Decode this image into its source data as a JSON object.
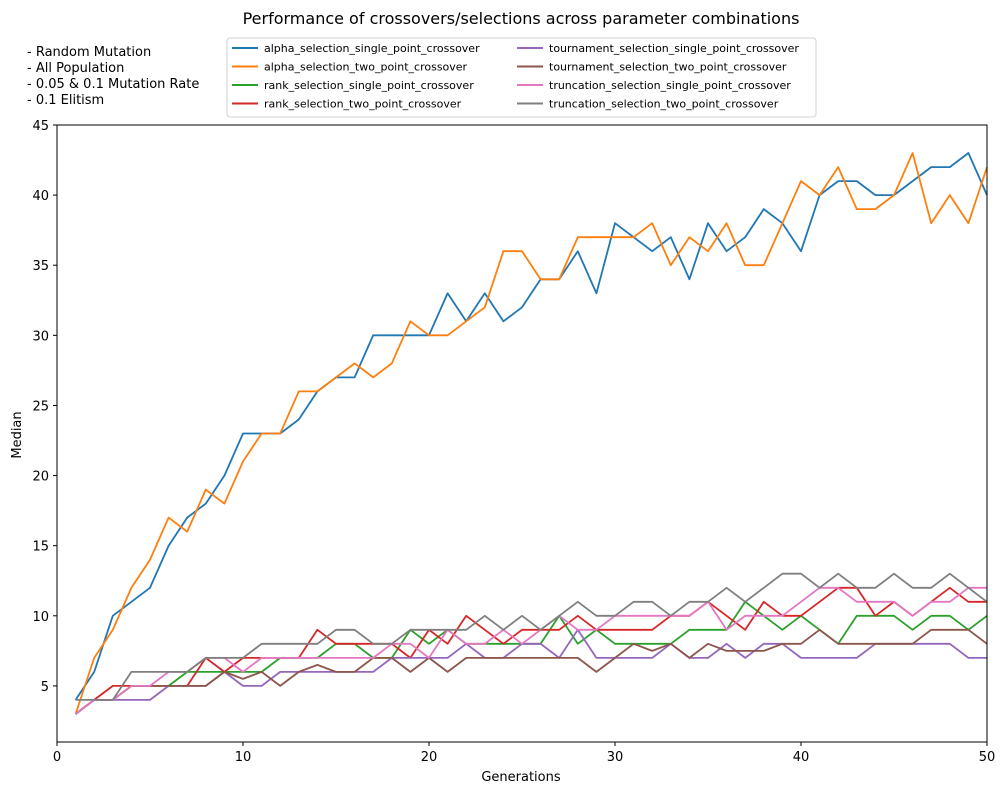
{
  "chart_data": {
    "type": "line",
    "title": "Performance of crossovers/selections across parameter combinations",
    "notes": [
      "- Random Mutation",
      "- All Population",
      "- 0.05 & 0.1 Mutation Rate",
      "- 0.1 Elitism"
    ],
    "xlabel": "Generations",
    "ylabel": "Median",
    "xlim": [
      0,
      50
    ],
    "ylim": [
      1,
      45
    ],
    "xticks": [
      0,
      10,
      20,
      30,
      40,
      50
    ],
    "yticks": [
      5,
      10,
      15,
      20,
      25,
      30,
      35,
      40,
      45
    ],
    "grid": false,
    "legend_position": "top-center",
    "x": [
      1,
      2,
      3,
      4,
      5,
      6,
      7,
      8,
      9,
      10,
      11,
      12,
      13,
      14,
      15,
      16,
      17,
      18,
      19,
      20,
      21,
      22,
      23,
      24,
      25,
      26,
      27,
      28,
      29,
      30,
      31,
      32,
      33,
      34,
      35,
      36,
      37,
      38,
      39,
      40,
      41,
      42,
      43,
      44,
      45,
      46,
      47,
      48,
      49,
      50
    ],
    "series": [
      {
        "name": "alpha_selection_single_point_crossover",
        "color": "#1f77b4",
        "values": [
          4,
          6,
          10,
          11,
          12,
          15,
          17,
          18,
          20,
          23,
          23,
          23,
          24,
          26,
          27,
          27,
          30,
          30,
          30,
          30,
          33,
          31,
          33,
          31,
          32,
          34,
          34,
          36,
          33,
          38,
          37,
          36,
          37,
          34,
          38,
          36,
          37,
          39,
          38,
          36,
          40,
          41,
          41,
          40,
          40,
          41,
          42,
          42,
          43,
          40
        ]
      },
      {
        "name": "alpha_selection_two_point_crossover",
        "color": "#ff7f0e",
        "values": [
          3,
          7,
          9,
          12,
          14,
          17,
          16,
          19,
          18,
          21,
          23,
          23,
          26,
          26,
          27,
          28,
          27,
          28,
          31,
          30,
          30,
          31,
          32,
          36,
          36,
          34,
          34,
          37,
          37,
          37,
          37,
          38,
          35,
          37,
          36,
          38,
          35,
          35,
          38,
          41,
          40,
          42,
          39,
          39,
          40,
          43,
          38,
          40,
          38,
          42
        ]
      },
      {
        "name": "rank_selection_single_point_crossover",
        "color": "#2ca02c",
        "values": [
          3,
          4,
          4,
          5,
          5,
          5,
          6,
          6,
          6,
          6,
          6,
          7,
          7,
          7,
          8,
          8,
          7,
          7,
          9,
          8,
          9,
          8,
          8,
          8,
          8,
          8,
          10,
          8,
          9,
          8,
          8,
          8,
          8,
          9,
          9,
          9,
          11,
          10,
          9,
          10,
          9,
          8,
          10,
          10,
          10,
          9,
          10,
          10,
          9,
          10
        ]
      },
      {
        "name": "rank_selection_two_point_crossover",
        "color": "#d62728",
        "values": [
          3,
          4,
          5,
          5,
          5,
          5,
          5,
          7,
          6,
          7,
          7,
          7,
          7,
          9,
          8,
          8,
          8,
          8,
          7,
          9,
          8,
          10,
          9,
          8,
          9,
          9,
          9,
          10,
          9,
          9,
          9,
          9,
          10,
          10,
          11,
          10,
          9,
          11,
          10,
          10,
          11,
          12,
          12,
          10,
          11,
          10,
          11,
          12,
          11,
          11
        ]
      },
      {
        "name": "tournament_selection_single_point_crossover",
        "color": "#9467bd",
        "values": [
          3,
          4,
          4,
          4,
          4,
          5,
          5,
          5,
          6,
          5,
          5,
          6,
          6,
          6,
          6,
          6,
          6,
          7,
          7,
          7,
          7,
          8,
          7,
          7,
          8,
          8,
          7,
          9,
          7,
          7,
          7,
          7,
          8,
          7,
          7,
          8,
          7,
          8,
          8,
          7,
          7,
          7,
          7,
          8,
          8,
          8,
          8,
          8,
          7,
          7
        ]
      },
      {
        "name": "tournament_selection_two_point_crossover",
        "color": "#8c564b",
        "values": [
          3,
          4,
          4,
          5,
          5,
          5,
          5,
          5,
          6,
          5.5,
          6,
          5,
          6,
          6.5,
          6,
          6,
          7,
          7,
          6,
          7,
          6,
          7,
          7,
          7,
          7,
          7,
          7,
          7,
          6,
          7,
          8,
          7.5,
          8,
          7,
          8,
          7.5,
          7.5,
          7.5,
          8,
          8,
          9,
          8,
          8,
          8,
          8,
          8,
          9,
          9,
          9,
          8
        ]
      },
      {
        "name": "truncation_selection_single_point_crossover",
        "color": "#e377c2",
        "values": [
          3,
          4,
          4,
          5,
          5,
          6,
          6,
          7,
          7,
          6,
          7,
          7,
          7,
          7,
          7,
          7,
          7,
          8,
          8,
          7,
          9,
          8,
          8,
          9,
          8,
          9,
          10,
          9,
          9,
          10,
          10,
          10,
          10,
          10,
          11,
          9,
          10,
          10,
          10,
          11,
          12,
          12,
          11,
          11,
          11,
          10,
          11,
          11,
          12,
          12
        ]
      },
      {
        "name": "truncation_selection_two_point_crossover",
        "color": "#7f7f7f",
        "values": [
          4,
          4,
          4,
          6,
          6,
          6,
          6,
          7,
          7,
          7,
          8,
          8,
          8,
          8,
          9,
          9,
          8,
          8,
          9,
          9,
          9,
          9,
          10,
          9,
          10,
          9,
          10,
          11,
          10,
          10,
          11,
          11,
          10,
          11,
          11,
          12,
          11,
          12,
          13,
          13,
          12,
          13,
          12,
          12,
          13,
          12,
          12,
          13,
          12,
          11
        ]
      }
    ]
  }
}
